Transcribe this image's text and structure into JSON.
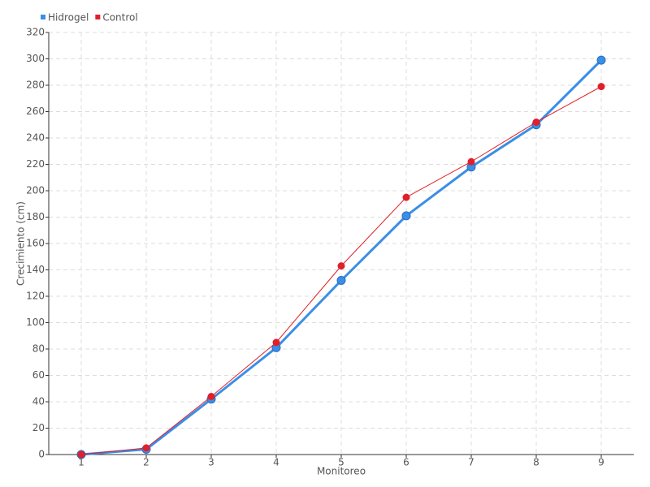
{
  "chart_data": {
    "type": "line",
    "x_label": "Monitoreo",
    "y_label": "Crecimiento (cm)",
    "categories": [
      "1",
      "2",
      "3",
      "4",
      "5",
      "6",
      "7",
      "8",
      "9"
    ],
    "series": [
      {
        "name": "Hidrogel",
        "color": "#3a8ee6",
        "values": [
          0,
          4,
          42,
          81,
          132,
          181,
          218,
          250,
          299
        ]
      },
      {
        "name": "Control",
        "color": "#e0202a",
        "values": [
          0,
          5,
          44,
          85,
          143,
          195,
          222,
          252,
          279
        ]
      }
    ],
    "ylim": [
      0,
      320
    ],
    "yticks": [
      0,
      20,
      40,
      60,
      80,
      100,
      120,
      140,
      160,
      180,
      200,
      220,
      240,
      260,
      280,
      300,
      320
    ],
    "grid": true,
    "legend": "top-left"
  }
}
